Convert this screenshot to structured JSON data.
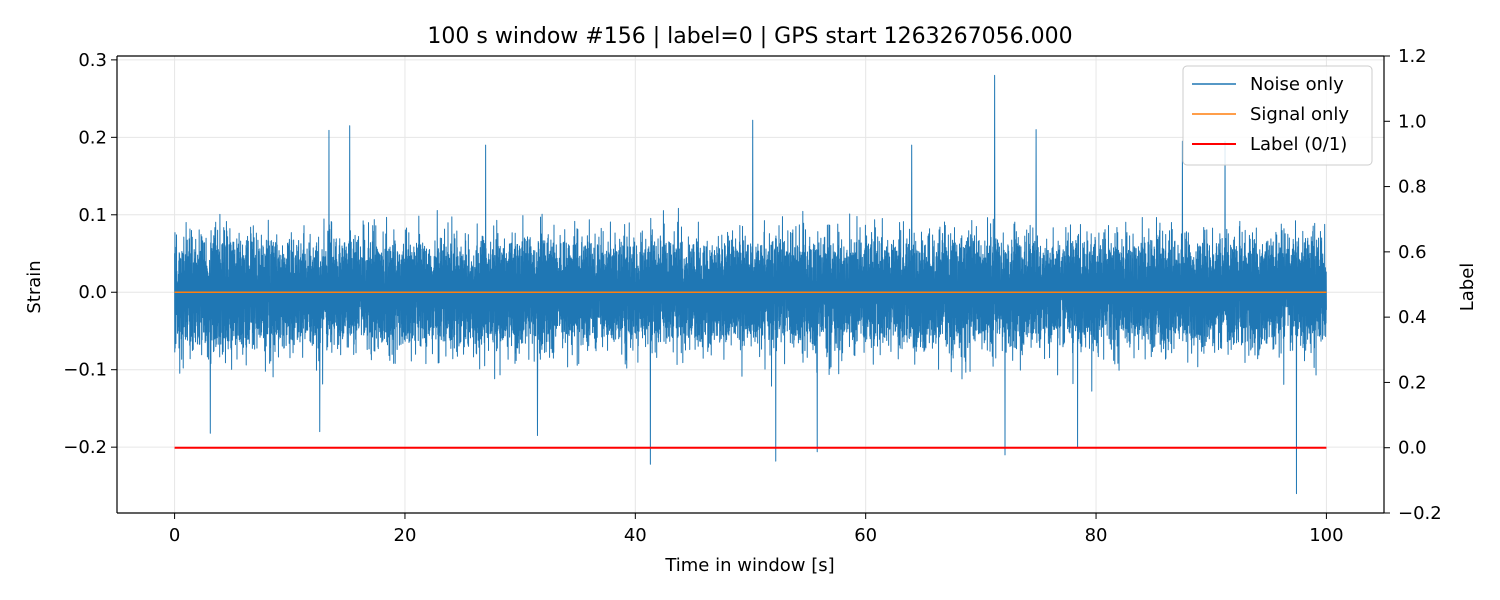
{
  "chart_data": {
    "type": "line",
    "title": "100 s window #156 | label=0 | GPS start 1263267056.000",
    "xlabel": "Time in window [s]",
    "ylabel": "Strain",
    "y2label": "Label",
    "xlim": [
      -5,
      105
    ],
    "ylim": [
      -0.285,
      0.305
    ],
    "y2lim": [
      -0.2,
      1.2
    ],
    "xticks": [
      0,
      20,
      40,
      60,
      80,
      100
    ],
    "xtick_labels": [
      "0",
      "20",
      "40",
      "60",
      "80",
      "100"
    ],
    "yticks": [
      -0.2,
      -0.1,
      0.0,
      0.1,
      0.2,
      0.3
    ],
    "ytick_labels": [
      "−0.2",
      "−0.1",
      "0.0",
      "0.1",
      "0.2",
      "0.3"
    ],
    "y2ticks": [
      -0.2,
      0.0,
      0.2,
      0.4,
      0.6,
      0.8,
      1.0,
      1.2
    ],
    "y2tick_labels": [
      "−0.2",
      "0.0",
      "0.2",
      "0.4",
      "0.6",
      "0.8",
      "1.0",
      "1.2"
    ],
    "grid": true,
    "legend_position": "top-right",
    "series": [
      {
        "name": "Noise only",
        "color": "#1f77b4",
        "axis": "left",
        "x_range": [
          0,
          100
        ],
        "envelope_typical": [
          -0.13,
          0.14
        ],
        "spikes": [
          {
            "x": 13.4,
            "y": 0.209
          },
          {
            "x": 15.2,
            "y": 0.215
          },
          {
            "x": 50.2,
            "y": 0.222
          },
          {
            "x": 71.2,
            "y": 0.28
          },
          {
            "x": 74.8,
            "y": 0.21
          },
          {
            "x": 91.2,
            "y": 0.195
          },
          {
            "x": 41.3,
            "y": -0.222
          },
          {
            "x": 52.2,
            "y": -0.218
          },
          {
            "x": 55.8,
            "y": -0.206
          },
          {
            "x": 72.1,
            "y": -0.21
          },
          {
            "x": 97.4,
            "y": -0.26
          },
          {
            "x": 31.5,
            "y": -0.185
          },
          {
            "x": 12.6,
            "y": -0.18
          },
          {
            "x": 78.4,
            "y": -0.2
          },
          {
            "x": 3.1,
            "y": -0.182
          },
          {
            "x": 27.0,
            "y": 0.19
          },
          {
            "x": 64.0,
            "y": 0.19
          },
          {
            "x": 87.5,
            "y": 0.195
          }
        ]
      },
      {
        "name": "Signal only",
        "color": "#ff7f0e",
        "axis": "left",
        "x": [
          0,
          100
        ],
        "y": [
          0.0,
          0.0
        ]
      },
      {
        "name": "Label (0/1)",
        "color": "#ff0000",
        "axis": "right",
        "x": [
          0,
          100
        ],
        "y": [
          0,
          0
        ]
      }
    ]
  }
}
